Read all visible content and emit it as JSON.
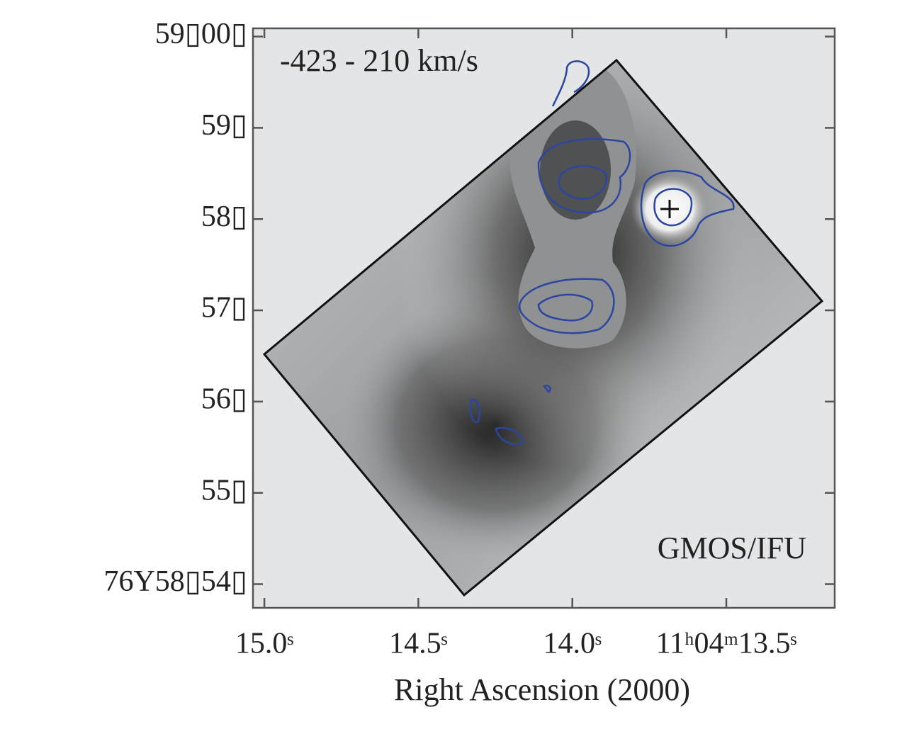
{
  "chart_data": {
    "type": "image",
    "title": "-423 - 210 km/s",
    "annotation": "GMOS/IFU",
    "xlabel": "Right Ascension (2000)",
    "xlim": [
      15.037,
      13.148
    ],
    "xticks": [
      {
        "value": 15.0,
        "label": "15.0ˢ"
      },
      {
        "value": 14.5,
        "label": "14.5ˢ"
      },
      {
        "value": 14.0,
        "label": "14.0ˢ"
      },
      {
        "value": 13.5,
        "label": "11ʰ04ᵐ13.5ˢ"
      }
    ],
    "ylim": [
      53.74,
      60.09
    ],
    "yticks": [
      {
        "value": 54,
        "label": "76Y58▯54▯"
      },
      {
        "value": 55,
        "label": "55▯"
      },
      {
        "value": 56,
        "label": "56▯"
      },
      {
        "value": 57,
        "label": "57▯"
      },
      {
        "value": 58,
        "label": "58▯"
      },
      {
        "value": 59,
        "label": "59▯"
      },
      {
        "value": 60,
        "label": "59▯00▯"
      }
    ]
  }
}
